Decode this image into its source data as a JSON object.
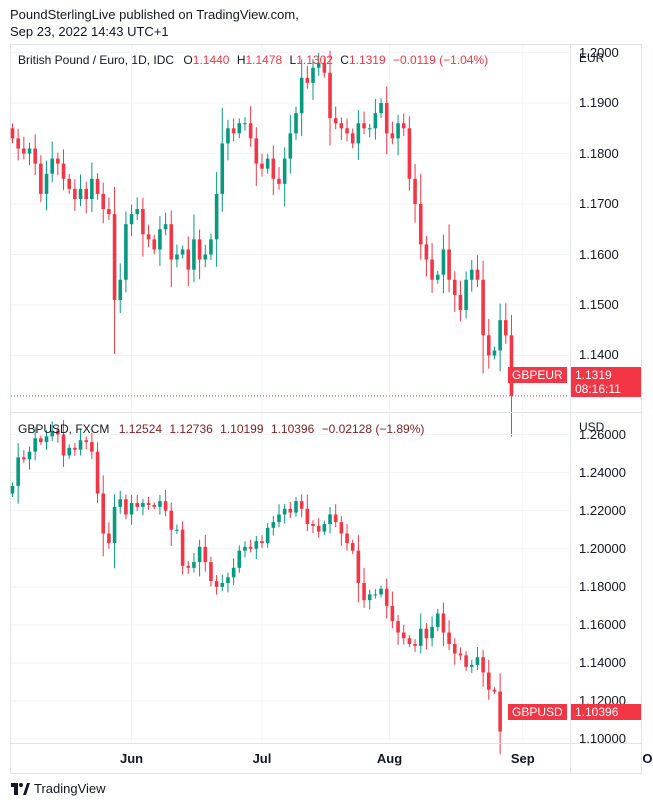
{
  "header": {
    "line1": "PoundSterlingLive published on TradingView.com,",
    "line2": "Sep 23, 2022 14:43 UTC+1"
  },
  "footer": {
    "brand": "TradingView",
    "logo_icon": "tradingview-logo-icon"
  },
  "colors": {
    "up": "#089981",
    "down": "#f23645",
    "grid": "#f0f3fa",
    "border": "#e0e3eb"
  },
  "chart_data": [
    {
      "type": "candlestick",
      "legend": {
        "symbol": "British Pound / Euro, 1D, IDC",
        "open_label": "O",
        "open": "1.1440",
        "high_label": "H",
        "high": "1.1478",
        "low_label": "L",
        "low": "1.1302",
        "close_label": "C",
        "close": "1.1319",
        "change": "−0.0119 (−1.04%)"
      },
      "unit": "EUR",
      "ylim": [
        1.129,
        1.2015
      ],
      "yticks": [
        "1.2000",
        "1.1900",
        "1.1800",
        "1.1700",
        "1.1600",
        "1.1500",
        "1.1400"
      ],
      "last_price_label": "1.1319",
      "symbol_tag": "GBPEUR",
      "countdown": "08:16:11",
      "closes": [
        1.183,
        1.181,
        1.18,
        1.181,
        1.178,
        1.172,
        1.176,
        1.179,
        1.178,
        1.175,
        1.173,
        1.171,
        1.173,
        1.171,
        1.175,
        1.172,
        1.169,
        1.168,
        1.151,
        1.155,
        1.166,
        1.168,
        1.169,
        1.164,
        1.163,
        1.161,
        1.165,
        1.166,
        1.159,
        1.16,
        1.161,
        1.157,
        1.163,
        1.159,
        1.16,
        1.163,
        1.172,
        1.182,
        1.185,
        1.184,
        1.186,
        1.186,
        1.183,
        1.178,
        1.177,
        1.179,
        1.175,
        1.174,
        1.179,
        1.184,
        1.188,
        1.195,
        1.194,
        1.197,
        1.198,
        1.196,
        1.187,
        1.186,
        1.185,
        1.184,
        1.182,
        1.186,
        1.185,
        1.185,
        1.188,
        1.19,
        1.184,
        1.183,
        1.186,
        1.185,
        1.175,
        1.17,
        1.162,
        1.159,
        1.155,
        1.156,
        1.161,
        1.155,
        1.152,
        1.149,
        1.155,
        1.157,
        1.155,
        1.144,
        1.14,
        1.141,
        1.147,
        1.144,
        1.132
      ]
    },
    {
      "type": "candlestick",
      "legend": {
        "symbol": "GBPUSD, FXCM",
        "open": "1.12524",
        "high": "1.12736",
        "low": "1.10199",
        "close": "1.10396",
        "change": "−0.02128 (−1.89%)"
      },
      "unit": "USD",
      "ylim": [
        1.0985,
        1.2713
      ],
      "yticks": [
        "1.26000",
        "1.24000",
        "1.22000",
        "1.20000",
        "1.18000",
        "1.16000",
        "1.14000",
        "1.12000",
        "1.10000"
      ],
      "last_price_label": "1.10396",
      "symbol_tag": "GBPUSD",
      "closes": [
        1.233,
        1.248,
        1.247,
        1.251,
        1.258,
        1.256,
        1.259,
        1.262,
        1.26,
        1.249,
        1.253,
        1.252,
        1.257,
        1.256,
        1.251,
        1.229,
        1.208,
        1.203,
        1.222,
        1.226,
        1.218,
        1.224,
        1.222,
        1.224,
        1.223,
        1.222,
        1.225,
        1.22,
        1.21,
        1.21,
        1.191,
        1.19,
        1.193,
        1.201,
        1.193,
        1.183,
        1.18,
        1.182,
        1.185,
        1.19,
        1.199,
        1.201,
        1.2,
        1.204,
        1.203,
        1.211,
        1.214,
        1.218,
        1.221,
        1.219,
        1.225,
        1.221,
        1.213,
        1.212,
        1.209,
        1.213,
        1.218,
        1.214,
        1.208,
        1.203,
        1.199,
        1.182,
        1.173,
        1.176,
        1.176,
        1.179,
        1.17,
        1.162,
        1.156,
        1.153,
        1.15,
        1.149,
        1.158,
        1.153,
        1.159,
        1.166,
        1.156,
        1.15,
        1.145,
        1.144,
        1.138,
        1.139,
        1.143,
        1.135,
        1.126,
        1.125,
        1.104
      ]
    }
  ],
  "x_axis": {
    "labels": [
      "Jun",
      "Jul",
      "Aug",
      "Sep",
      "Oct"
    ],
    "positions": [
      21,
      44,
      66.5,
      90,
      113
    ]
  }
}
